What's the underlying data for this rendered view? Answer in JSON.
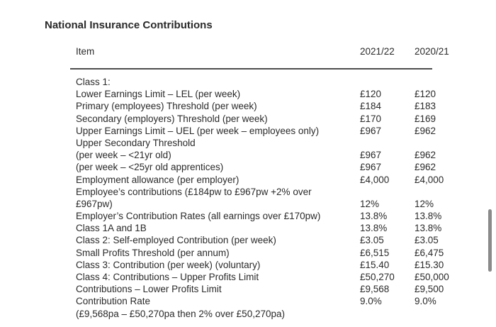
{
  "page": {
    "title": "National Insurance Contributions"
  },
  "table": {
    "columns": {
      "item": "Item",
      "y2122": "2021/22",
      "y2021": "2020/21"
    },
    "rows": [
      {
        "label": "Class 1:",
        "v2122": "",
        "v2021": ""
      },
      {
        "label": "Lower Earnings Limit – LEL (per week)",
        "v2122": "£120",
        "v2021": "£120"
      },
      {
        "label": "Primary (employees) Threshold (per week)",
        "v2122": "£184",
        "v2021": "£183"
      },
      {
        "label": "Secondary (employers) Threshold (per week)",
        "v2122": "£170",
        "v2021": "£169"
      },
      {
        "label": "Upper Earnings Limit – UEL (per week – employees only)",
        "v2122": "£967",
        "v2021": "£962"
      },
      {
        "label": "Upper Secondary Threshold",
        "v2122": "",
        "v2021": ""
      },
      {
        "label": "(per week – <21yr old)",
        "v2122": "£967",
        "v2021": "£962"
      },
      {
        "label": "(per week – <25yr old apprentices)",
        "v2122": "£967",
        "v2021": "£962"
      },
      {
        "label": "Employment allowance (per employer)",
        "v2122": "£4,000",
        "v2021": "£4,000"
      },
      {
        "label": "Employee’s contributions (£184pw to £967pw +2% over",
        "v2122": "",
        "v2021": ""
      },
      {
        "label": "£967pw)",
        "v2122": "12%",
        "v2021": "12%"
      },
      {
        "label": "Employer’s Contribution Rates (all earnings over £170pw)",
        "v2122": "13.8%",
        "v2021": "13.8%"
      },
      {
        "label": "Class 1A and 1B",
        "v2122": "13.8%",
        "v2021": "13.8%"
      },
      {
        "label": "Class 2: Self-employed Contribution (per week)",
        "v2122": "£3.05",
        "v2021": "£3.05"
      },
      {
        "label": "Small Profits Threshold (per annum)",
        "v2122": "£6,515",
        "v2021": "£6,475"
      },
      {
        "label": "Class 3: Contribution (per week) (voluntary)",
        "v2122": "£15.40",
        "v2021": "£15.30"
      },
      {
        "label": "Class 4: Contributions – Upper Profits Limit",
        "v2122": "£50,270",
        "v2021": "£50,000"
      },
      {
        "label": "Contributions – Lower Profits Limit",
        "v2122": "£9,568",
        "v2021": "£9,500"
      },
      {
        "label": "Contribution Rate",
        "v2122": "9.0%",
        "v2021": "9.0%"
      },
      {
        "label": "(£9,568pa – £50,270pa then 2% over £50,270pa)",
        "v2122": "",
        "v2021": ""
      }
    ]
  },
  "colors": {
    "background": "#ffffff",
    "text": "#2a2a2a",
    "rule": "#4d4d4d",
    "scrollbar_thumb": "#8a8a8a"
  }
}
